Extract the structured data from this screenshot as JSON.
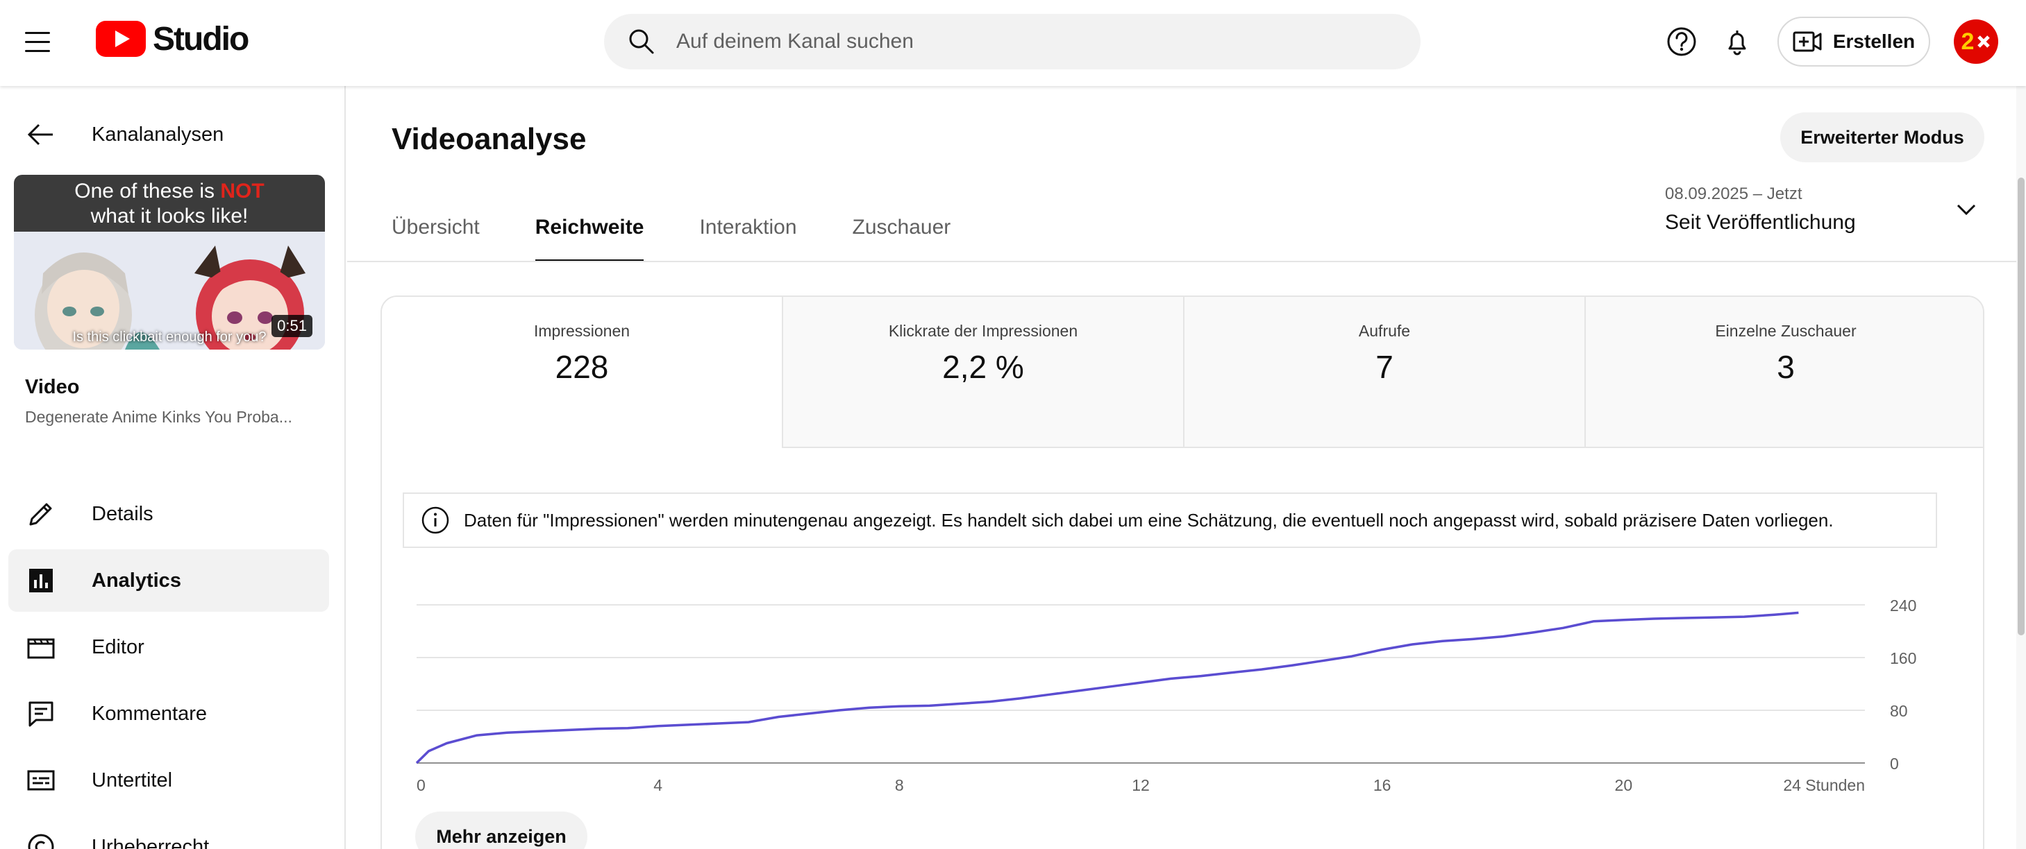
{
  "topbar": {
    "logo_text": "Studio",
    "search_placeholder": "Auf deinem Kanal suchen",
    "create_label": "Erstellen",
    "avatar_text": "2"
  },
  "sidebar": {
    "back_label": "Kanalanalysen",
    "thumbnail": {
      "banner_line1_pre": "One of these is ",
      "banner_line1_highlight": "NOT",
      "banner_line2": "what it looks like!",
      "caption": "Is this clickbait enough for you?",
      "duration": "0:51"
    },
    "video_heading": "Video",
    "video_title": "Degenerate Anime Kinks You Proba...",
    "nav": [
      {
        "label": "Details",
        "icon": "pencil-icon"
      },
      {
        "label": "Analytics",
        "icon": "analytics-icon",
        "active": true
      },
      {
        "label": "Editor",
        "icon": "clapperboard-icon"
      },
      {
        "label": "Kommentare",
        "icon": "comment-icon"
      },
      {
        "label": "Untertitel",
        "icon": "subtitles-icon"
      },
      {
        "label": "Urheberrecht",
        "icon": "copyright-icon"
      }
    ]
  },
  "main": {
    "title": "Videoanalyse",
    "advanced_mode": "Erweiterter Modus",
    "tabs": [
      "Übersicht",
      "Reichweite",
      "Interaktion",
      "Zuschauer"
    ],
    "active_tab": "Reichweite",
    "date_range": {
      "range": "08.09.2025 – Jetzt",
      "label": "Seit Veröffentlichung"
    },
    "metrics": [
      {
        "label": "Impressionen",
        "value": "228"
      },
      {
        "label": "Klickrate der Impressionen",
        "value": "2,2 %"
      },
      {
        "label": "Aufrufe",
        "value": "7"
      },
      {
        "label": "Einzelne Zuschauer",
        "value": "3"
      }
    ],
    "info_text": "Daten für \"Impressionen\" werden minutengenau angezeigt. Es handelt sich dabei um eine Schätzung, die eventuell noch angepasst wird, sobald präzisere Daten vorliegen.",
    "more_label": "Mehr anzeigen"
  },
  "colors": {
    "accent_line": "#5b4dd1",
    "brand_red": "#ff0000"
  },
  "chart_data": {
    "type": "line",
    "title": "",
    "xlabel": "",
    "ylabel": "",
    "x_ticks": [
      "0",
      "4",
      "8",
      "12",
      "16",
      "20",
      "24 Stunden"
    ],
    "y_ticks": [
      "240",
      "160",
      "80",
      "0"
    ],
    "xlim": [
      0,
      24
    ],
    "ylim": [
      0,
      240
    ],
    "grid": true,
    "series": [
      {
        "x": [
          0,
          0.2,
          0.5,
          1,
          1.5,
          2,
          2.5,
          3,
          3.5,
          4,
          4.5,
          5,
          5.5,
          6,
          6.5,
          7,
          7.5,
          8,
          8.5,
          9,
          9.5,
          10,
          10.5,
          11,
          11.5,
          12,
          12.5,
          13,
          13.5,
          14,
          14.5,
          15,
          15.5,
          16,
          16.5,
          17,
          17.5,
          18,
          18.5,
          19,
          19.5,
          20,
          20.5,
          21,
          21.5,
          22,
          22.5,
          22.9
        ],
        "y": [
          0,
          18,
          30,
          42,
          46,
          48,
          50,
          52,
          53,
          56,
          58,
          60,
          62,
          70,
          75,
          80,
          84,
          86,
          87,
          90,
          93,
          98,
          104,
          110,
          116,
          122,
          128,
          132,
          137,
          142,
          148,
          155,
          162,
          172,
          180,
          185,
          188,
          192,
          198,
          205,
          215,
          217,
          219,
          220,
          221,
          222,
          225,
          228
        ]
      }
    ]
  }
}
